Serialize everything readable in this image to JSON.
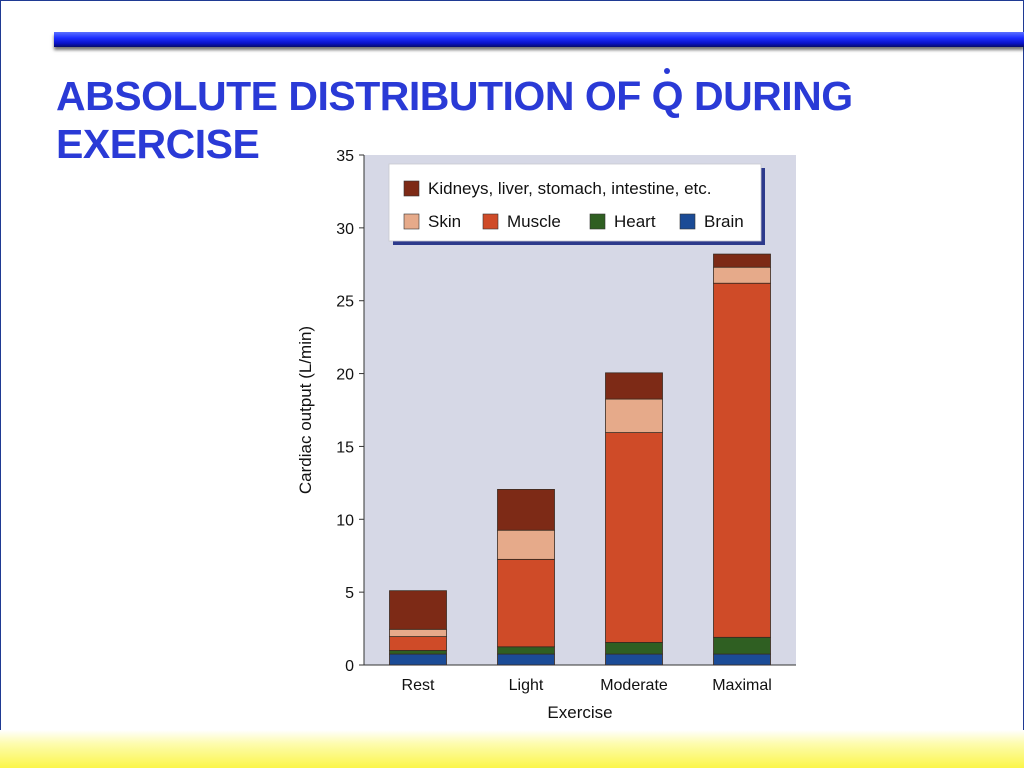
{
  "slide": {
    "title_line1_before": "ABSOLUTE DISTRIBUTION OF ",
    "title_q": "Q",
    "title_line1_after": " DURING",
    "title_line2": "EXERCISE",
    "title_color": "#2a3ad6"
  },
  "chart_data": {
    "type": "bar",
    "stacked": true,
    "title": "",
    "xlabel": "Exercise",
    "ylabel": "Cardiac output (L/min)",
    "ylim": [
      0,
      35
    ],
    "yticks": [
      0,
      5,
      10,
      15,
      20,
      25,
      30,
      35
    ],
    "grid": false,
    "legend_position": "top",
    "categories": [
      "Rest",
      "Light",
      "Moderate",
      "Maximal"
    ],
    "series": [
      {
        "name": "Brain",
        "color": "#1b4b96",
        "values": [
          0.75,
          0.75,
          0.75,
          0.75
        ]
      },
      {
        "name": "Heart",
        "color": "#2f5f22",
        "values": [
          0.25,
          0.5,
          0.8,
          1.15
        ]
      },
      {
        "name": "Muscle",
        "color": "#cf4b28",
        "values": [
          0.95,
          6.0,
          14.4,
          24.3
        ]
      },
      {
        "name": "Skin",
        "color": "#e6aa8a",
        "values": [
          0.5,
          2.0,
          2.3,
          1.1
        ]
      },
      {
        "name": "Kidneys, liver, stomach, intestine, etc.",
        "color": "#7d2a16",
        "values": [
          2.65,
          2.8,
          1.8,
          0.9
        ]
      }
    ],
    "legend_order": [
      [
        "Kidneys, liver, stomach, intestine, etc."
      ],
      [
        "Skin",
        "Muscle",
        "Heart",
        "Brain"
      ]
    ]
  }
}
